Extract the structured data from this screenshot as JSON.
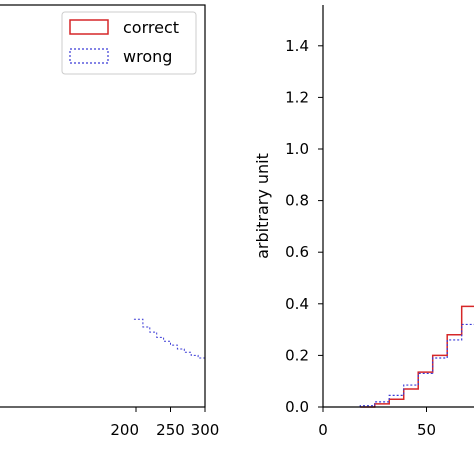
{
  "chart_data": [
    {
      "type": "line",
      "xlim": [
        0,
        300
      ],
      "x_ticks": [
        "200",
        "250",
        "300"
      ],
      "grid": false,
      "legend": {
        "placement": "top-right",
        "entries": [
          "correct",
          "wrong"
        ]
      },
      "series": [
        {
          "name": "wrong",
          "style": "dotted-step",
          "color": "#3b3bd6",
          "x": [
            197,
            210,
            220,
            230,
            240,
            250,
            260,
            270,
            280,
            290,
            300
          ],
          "y": [
            0.34,
            0.31,
            0.29,
            0.27,
            0.255,
            0.24,
            0.225,
            0.212,
            0.2,
            0.19,
            0.18
          ]
        }
      ]
    },
    {
      "type": "bar",
      "xlim": [
        0,
        100
      ],
      "ylim": [
        0,
        1.5
      ],
      "x_ticks": [
        "0",
        "50"
      ],
      "y_ticks": [
        "0.0",
        "0.2",
        "0.4",
        "0.6",
        "0.8",
        "1.0",
        "1.2",
        "1.4"
      ],
      "ylabel": "arbitrary unit",
      "grid": false,
      "series": [
        {
          "name": "correct",
          "style": "step",
          "color": "#d62728",
          "bin_edges": [
            18,
            25,
            32,
            39,
            46,
            53,
            60,
            67,
            74
          ],
          "values": [
            0.0,
            0.012,
            0.03,
            0.07,
            0.135,
            0.2,
            0.28,
            0.39
          ]
        },
        {
          "name": "wrong",
          "style": "dotted-step",
          "color": "#3b3bd6",
          "bin_edges": [
            18,
            25,
            32,
            39,
            46,
            53,
            60,
            67,
            74
          ],
          "values": [
            0.005,
            0.02,
            0.045,
            0.085,
            0.13,
            0.19,
            0.26,
            0.32
          ]
        }
      ]
    }
  ]
}
